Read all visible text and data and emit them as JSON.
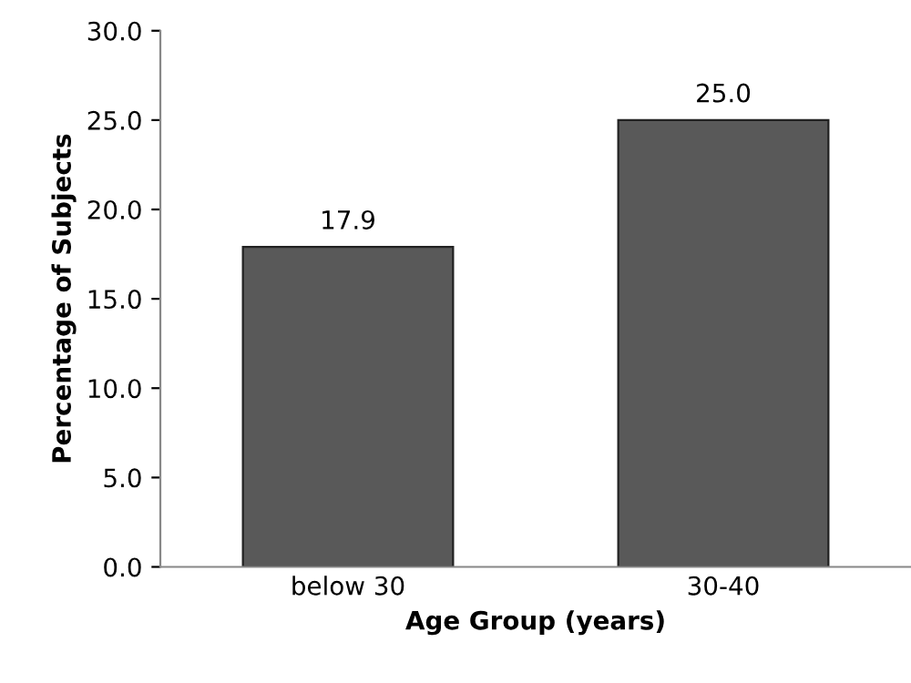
{
  "chart_data": {
    "type": "bar",
    "xlabel": "Age Group (years)",
    "ylabel": "Percentage of Subjects",
    "categories": [
      "below 30",
      "30-40"
    ],
    "values": [
      17.9,
      25.0
    ],
    "color": "#595959",
    "value_labels": [
      "17.9",
      "25.0"
    ],
    "ylim": [
      0,
      30
    ],
    "yticks": [
      {
        "value": 0,
        "label": "0.0"
      },
      {
        "value": 5,
        "label": "5.0"
      },
      {
        "value": 10,
        "label": "10.0"
      },
      {
        "value": 15,
        "label": "15.0"
      },
      {
        "value": 20,
        "label": "20.0"
      },
      {
        "value": 25,
        "label": "25.0"
      },
      {
        "value": 30,
        "label": "30.0"
      }
    ],
    "grid": false,
    "legend": false
  }
}
